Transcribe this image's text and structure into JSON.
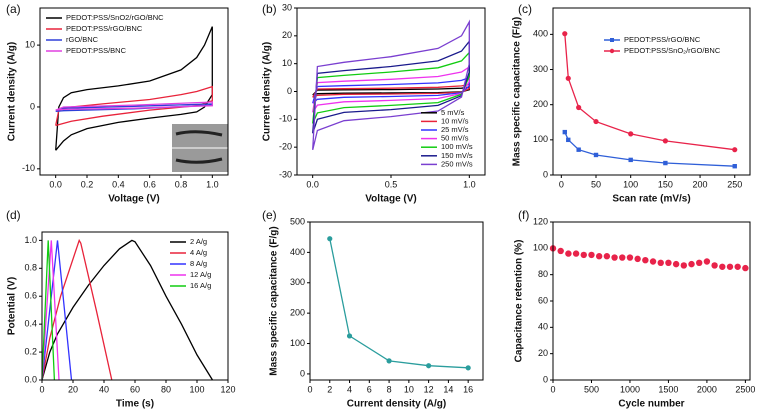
{
  "chart_data": [
    {
      "type": "line",
      "panel_label": "(a)",
      "xlabel": "Voltage (V)",
      "ylabel": "Current density (A/g)",
      "xlim": [
        -0.1,
        1.1
      ],
      "xticks": [
        {
          "value": 0,
          "label": "0.0"
        },
        {
          "value": 0.2,
          "label": "0.2"
        },
        {
          "value": 0.4,
          "label": "0.4"
        },
        {
          "value": 0.6,
          "label": "0.6"
        },
        {
          "value": 0.8,
          "label": "0.8"
        },
        {
          "value": 1,
          "label": "1.0"
        }
      ],
      "ylim": [
        -11,
        16
      ],
      "yticks": [
        -10,
        0,
        10
      ],
      "legend": "upper left",
      "series": [
        {
          "name": "PEDOT:PSS/SnO2/rGO/BNC",
          "color": "#000000",
          "x": [
            0,
            0.02,
            0.05,
            0.1,
            0.2,
            0.4,
            0.6,
            0.8,
            0.9,
            0.95,
            1,
            1,
            0.95,
            0.9,
            0.8,
            0.6,
            0.4,
            0.2,
            0.1,
            0.05,
            0
          ],
          "values": [
            -7,
            0,
            1.5,
            2.3,
            2.8,
            3.4,
            4.2,
            6,
            8,
            10,
            13,
            2,
            0,
            -0.8,
            -1.2,
            -1.8,
            -2.5,
            -3.5,
            -4.5,
            -5.5,
            -7
          ]
        },
        {
          "name": "PEDOT:PSS/rGO/BNC",
          "color": "#e8233a",
          "x": [
            0,
            0.02,
            0.1,
            0.3,
            0.6,
            0.8,
            0.9,
            1,
            1,
            0.9,
            0.6,
            0.3,
            0.1,
            0
          ],
          "values": [
            -3,
            -0.5,
            0,
            0.5,
            1.2,
            2,
            2.5,
            3.3,
            1,
            0.2,
            -0.5,
            -1.5,
            -2.3,
            -3
          ]
        },
        {
          "name": "rGO/BNC",
          "color": "#2f3fd8",
          "x": [
            0,
            0.05,
            0.5,
            1,
            1,
            0.5,
            0.05,
            0
          ],
          "values": [
            -0.7,
            -0.2,
            0.1,
            0.5,
            0.3,
            -0.3,
            -0.6,
            -0.7
          ]
        },
        {
          "name": "PEDOT:PSS/BNC",
          "color": "#e040e0",
          "x": [
            0,
            0.05,
            0.5,
            1,
            1,
            0.5,
            0.05,
            0
          ],
          "values": [
            -0.5,
            0,
            0.3,
            0.8,
            0.2,
            -0.2,
            -0.4,
            -0.5
          ]
        }
      ]
    },
    {
      "type": "line",
      "panel_label": "(b)",
      "xlabel": "Voltage (V)",
      "ylabel": "Current density (A/g)",
      "xlim": [
        -0.1,
        1.1
      ],
      "xticks": [
        {
          "value": 0,
          "label": "0.0"
        },
        {
          "value": 0.5,
          "label": "0.5"
        },
        {
          "value": 1,
          "label": "1.0"
        }
      ],
      "ylim": [
        -30,
        30
      ],
      "yticks": [
        -30,
        -20,
        -10,
        0,
        10,
        20,
        30
      ],
      "legend": "lower right",
      "x": [
        0,
        0.03,
        0.2,
        0.5,
        0.8,
        0.95,
        1,
        1,
        0.95,
        0.8,
        0.5,
        0.2,
        0.03,
        0
      ],
      "series": [
        {
          "name": "5 mV/s",
          "color": "#000000",
          "values": [
            -1.3,
            0.5,
            0.6,
            0.7,
            0.9,
            1.2,
            1.5,
            0.6,
            -0.1,
            -0.4,
            -0.5,
            -0.6,
            -0.8,
            -1.3
          ]
        },
        {
          "name": "10 mV/s",
          "color": "#e8233a",
          "values": [
            -2.1,
            0.9,
            1,
            1.2,
            1.5,
            2,
            2.5,
            1,
            -0.2,
            -0.7,
            -0.9,
            -1,
            -1.4,
            -2.1
          ]
        },
        {
          "name": "25 mV/s",
          "color": "#3333ff",
          "values": [
            -4.2,
            1.8,
            2.1,
            2.5,
            3.1,
            4,
            5,
            2,
            -0.4,
            -1.4,
            -1.8,
            -2.1,
            -2.8,
            -4.2
          ]
        },
        {
          "name": "50 mV/s",
          "color": "#ee33ee",
          "values": [
            -7.5,
            3.2,
            3.7,
            4.4,
            5.4,
            7,
            8.8,
            3.5,
            -0.7,
            -2.5,
            -3.2,
            -3.7,
            -4.9,
            -7.5
          ]
        },
        {
          "name": "100 mV/s",
          "color": "#11cc11",
          "values": [
            -11.5,
            5,
            5.8,
            7,
            8.5,
            11,
            14,
            5.5,
            -1,
            -4,
            -5,
            -5.8,
            -7.7,
            -11.5
          ]
        },
        {
          "name": "150 mV/s",
          "color": "#1a1a8c",
          "values": [
            -15,
            6.5,
            7.5,
            9,
            11,
            14.5,
            18,
            7,
            -1.5,
            -5,
            -6.5,
            -7.5,
            -10,
            -15
          ]
        },
        {
          "name": "250 mV/s",
          "color": "#7a3fd0",
          "values": [
            -21,
            9,
            10.5,
            12.5,
            15.5,
            20,
            25,
            10,
            -2,
            -7,
            -9,
            -10.5,
            -14,
            -21
          ]
        }
      ]
    },
    {
      "type": "line",
      "panel_label": "(c)",
      "xlabel": "Scan rate (mV/s)",
      "ylabel": "Mass specific capacitance (F/g)",
      "xlim": [
        -12,
        272
      ],
      "xticks": [
        0,
        50,
        100,
        150,
        200,
        250
      ],
      "ylim": [
        0,
        475
      ],
      "yticks": [
        0,
        100,
        200,
        300,
        400
      ],
      "legend": "upper right",
      "marker": "square",
      "x": [
        5,
        10,
        25,
        50,
        100,
        150,
        250
      ],
      "series": [
        {
          "name": "PEDOT:PSS/rGO/BNC",
          "color": "#2f5fd8",
          "values": [
            122,
            100,
            72,
            57,
            43,
            34,
            25
          ]
        },
        {
          "name": "PEDOT:PSS/SnO₂/rGO/BNC",
          "color": "#e8234a",
          "marker": "circle",
          "values": [
            402,
            275,
            192,
            152,
            117,
            97,
            72
          ]
        }
      ]
    },
    {
      "type": "line",
      "panel_label": "(d)",
      "xlabel": "Time (s)",
      "ylabel": "Potential (V)",
      "xlim": [
        0,
        120
      ],
      "xticks": [
        0,
        20,
        40,
        60,
        80,
        100,
        120
      ],
      "ylim": [
        0,
        1.06
      ],
      "yticks": [
        {
          "value": 0,
          "label": "0.0"
        },
        {
          "value": 0.2,
          "label": "0.2"
        },
        {
          "value": 0.4,
          "label": "0.4"
        },
        {
          "value": 0.6,
          "label": "0.6"
        },
        {
          "value": 0.8,
          "label": "0.8"
        },
        {
          "value": 1,
          "label": "1.0"
        }
      ],
      "legend": "upper right",
      "series": [
        {
          "name": "2 A/g",
          "color": "#000000",
          "x": [
            0,
            5,
            10,
            20,
            30,
            40,
            50,
            58,
            60,
            70,
            80,
            90,
            100,
            110
          ],
          "values": [
            0,
            0.2,
            0.33,
            0.52,
            0.68,
            0.82,
            0.94,
            1,
            0.99,
            0.82,
            0.6,
            0.4,
            0.18,
            0
          ]
        },
        {
          "name": "4 A/g",
          "color": "#e8233a",
          "x": [
            0,
            5,
            12,
            24,
            25,
            35,
            45
          ],
          "values": [
            0,
            0.3,
            0.6,
            1,
            0.98,
            0.5,
            0
          ]
        },
        {
          "name": "8 A/g",
          "color": "#3333ff",
          "x": [
            0,
            10,
            19
          ],
          "values": [
            0,
            1,
            0
          ]
        },
        {
          "name": "12 A/g",
          "color": "#ee33ee",
          "x": [
            0,
            6,
            11
          ],
          "values": [
            0,
            1,
            0
          ]
        },
        {
          "name": "16 A/g",
          "color": "#11cc11",
          "x": [
            0,
            4,
            8
          ],
          "values": [
            0,
            1,
            0
          ]
        }
      ]
    },
    {
      "type": "line",
      "panel_label": "(e)",
      "xlabel": "Current density (A/g)",
      "ylabel": "Mass specific capacitance (F/g)",
      "xlim": [
        0,
        17.5
      ],
      "xticks": [
        0,
        2,
        4,
        6,
        8,
        10,
        12,
        14,
        16
      ],
      "ylim": [
        -20,
        500
      ],
      "yticks": [
        0,
        100,
        200,
        300,
        400,
        500
      ],
      "marker": "circle",
      "x": [
        2,
        4,
        8,
        12,
        16
      ],
      "series": [
        {
          "color": "#2a9d9d",
          "values": [
            445,
            125,
            43,
            27,
            20
          ]
        }
      ]
    },
    {
      "type": "scatter",
      "panel_label": "(f)",
      "xlabel": "Cycle number",
      "ylabel": "Capacitance retention (%)",
      "xlim": [
        0,
        2560
      ],
      "xticks": [
        0,
        500,
        1000,
        1500,
        2000,
        2500
      ],
      "ylim": [
        0,
        120
      ],
      "yticks": [
        0,
        20,
        40,
        60,
        80,
        100,
        120
      ],
      "marker": "circle",
      "x": [
        0,
        100,
        200,
        300,
        400,
        500,
        600,
        700,
        800,
        900,
        1000,
        1100,
        1200,
        1300,
        1400,
        1500,
        1600,
        1700,
        1800,
        1900,
        2000,
        2100,
        2200,
        2300,
        2400,
        2500
      ],
      "series": [
        {
          "color": "#e8234a",
          "values": [
            100,
            98,
            96,
            96,
            95,
            95,
            94,
            94,
            93,
            93,
            93,
            92,
            91,
            90,
            89,
            89,
            88,
            87,
            88,
            89,
            90,
            87,
            86,
            86,
            86,
            85
          ]
        }
      ]
    }
  ]
}
